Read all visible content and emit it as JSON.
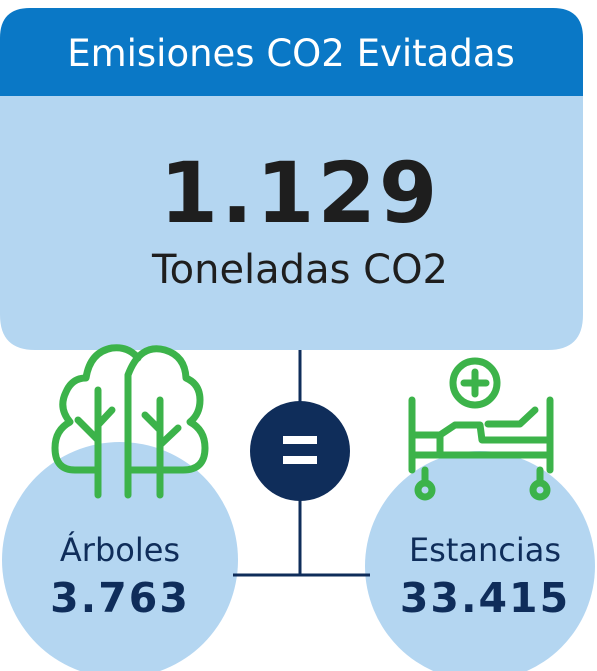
{
  "header": {
    "title": "Emisiones CO2 Evitadas"
  },
  "main": {
    "value": "1.129",
    "unit": "Toneladas CO2"
  },
  "equivalents": [
    {
      "label": "Árboles",
      "value": "3.763"
    },
    {
      "label": "Estancias",
      "value": "33.415"
    }
  ]
}
